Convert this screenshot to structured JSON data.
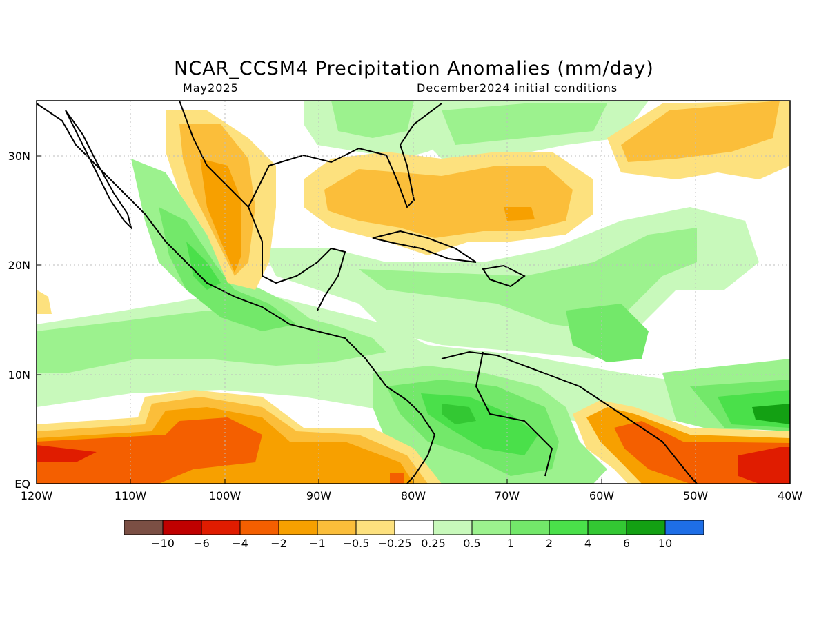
{
  "title": "NCAR_CCSM4 Precipitation Anomalies (mm/day)",
  "subtitle_left": "May2025",
  "subtitle_right": "December2024 initial conditions",
  "axes": {
    "lat_labels": [
      "30N",
      "20N",
      "10N",
      "EQ"
    ],
    "lat_values": [
      30,
      20,
      10,
      0
    ],
    "lon_labels": [
      "120W",
      "110W",
      "100W",
      "90W",
      "80W",
      "70W",
      "60W",
      "50W",
      "40W"
    ],
    "lon_values": [
      -120,
      -110,
      -100,
      -90,
      -80,
      -70,
      -60,
      -50,
      -40
    ],
    "lon_range": [
      -120,
      -40
    ],
    "lat_range": [
      0,
      35
    ],
    "grid": "dotted"
  },
  "colorbar": {
    "colors": [
      "#7b4f44",
      "#c00000",
      "#e01c00",
      "#f45f00",
      "#f7a000",
      "#fbbe3a",
      "#fde17e",
      "#ffffff",
      "#c8f9bb",
      "#9cf28e",
      "#73e86a",
      "#4ae04a",
      "#33c833",
      "#13a013",
      "#1e6ee6"
    ],
    "labels": [
      "−10",
      "−6",
      "−4",
      "−2",
      "−1",
      "−0.5",
      "−0.25",
      "0.25",
      "0.5",
      "1",
      "2",
      "4",
      "6",
      "10"
    ]
  },
  "levels": {
    "g1": "#c8f9bb",
    "g2": "#9cf28e",
    "g3": "#73e86a",
    "g4": "#4ae04a",
    "g5": "#33c833",
    "g6": "#13a013",
    "o1": "#fde17e",
    "o2": "#fbbe3a",
    "o3": "#f7a000",
    "o4": "#f45f00",
    "o5": "#e01c00",
    "o6": "#c00000"
  }
}
